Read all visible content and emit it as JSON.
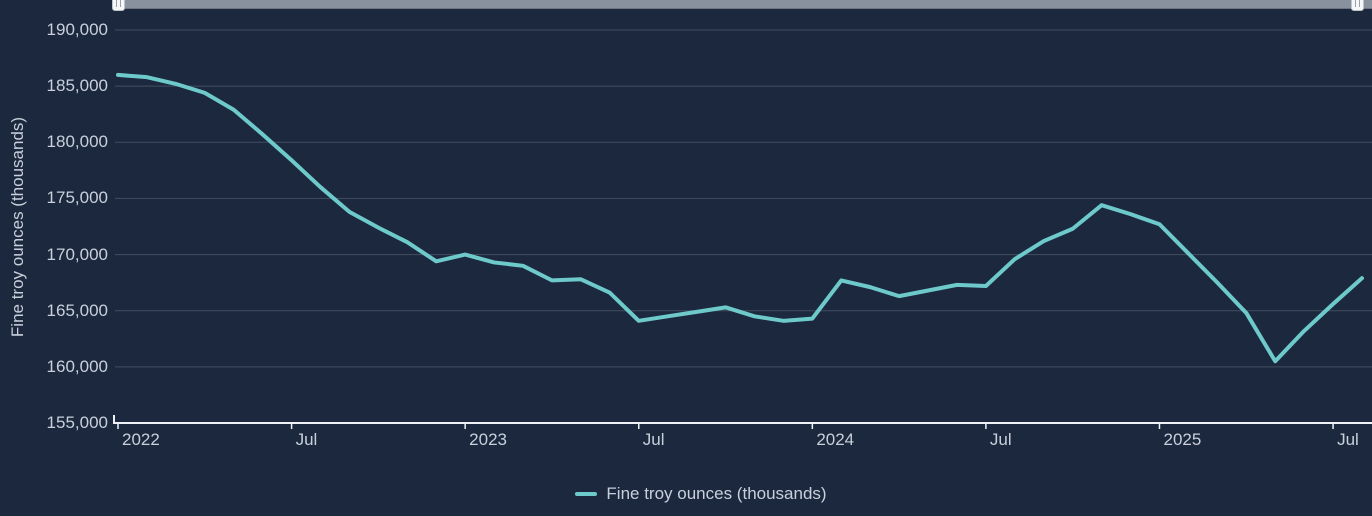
{
  "colors": {
    "background": "#1b283e",
    "series_line": "#6ecaca",
    "axis_line": "#eef2f6",
    "gridline": "rgba(255,255,255,0.18)",
    "text": "#c9d0db",
    "scrollbar_track": "#8a919e",
    "scrollbar_handle": "#f6f7f8"
  },
  "chart_data": {
    "type": "line",
    "title": "",
    "xlabel": "",
    "ylabel": "Fine troy ounces (thousands)",
    "ylim": [
      155000,
      190000
    ],
    "grid": true,
    "legend_position": "bottom",
    "x": [
      "2022-01",
      "2022-02",
      "2022-03",
      "2022-04",
      "2022-05",
      "2022-06",
      "2022-07",
      "2022-08",
      "2022-09",
      "2022-10",
      "2022-11",
      "2022-12",
      "2023-01",
      "2023-02",
      "2023-03",
      "2023-04",
      "2023-05",
      "2023-06",
      "2023-07",
      "2023-08",
      "2023-09",
      "2023-10",
      "2023-11",
      "2023-12",
      "2024-01",
      "2024-02",
      "2024-03",
      "2024-04",
      "2024-05",
      "2024-06",
      "2024-07",
      "2024-08",
      "2024-09",
      "2024-10",
      "2024-11",
      "2024-12",
      "2025-01",
      "2025-02",
      "2025-03",
      "2025-04",
      "2025-05",
      "2025-06",
      "2025-07",
      "2025-08"
    ],
    "series": [
      {
        "name": "Fine troy ounces (thousands)",
        "values": [
          186000,
          185800,
          185200,
          184400,
          182900,
          180700,
          178400,
          176000,
          173800,
          172400,
          171100,
          169400,
          170000,
          169300,
          169000,
          167700,
          167800,
          166600,
          164100,
          164500,
          164900,
          165300,
          164500,
          164100,
          164300,
          167700,
          167100,
          166300,
          166800,
          167300,
          167200,
          169600,
          171200,
          172300,
          174400,
          173600,
          172700,
          170100,
          167500,
          164800,
          160500,
          163200,
          165600,
          167900
        ]
      }
    ],
    "yticks": [
      {
        "value": 155000,
        "label": "155,000"
      },
      {
        "value": 160000,
        "label": "160,000"
      },
      {
        "value": 165000,
        "label": "165,000"
      },
      {
        "value": 170000,
        "label": "170,000"
      },
      {
        "value": 175000,
        "label": "175,000"
      },
      {
        "value": 180000,
        "label": "180,000"
      },
      {
        "value": 185000,
        "label": "185,000"
      },
      {
        "value": 190000,
        "label": "190,000"
      }
    ],
    "xticks": [
      {
        "index": 0,
        "label": "2022"
      },
      {
        "index": 6,
        "label": "Jul"
      },
      {
        "index": 12,
        "label": "2023"
      },
      {
        "index": 18,
        "label": "Jul"
      },
      {
        "index": 24,
        "label": "2024"
      },
      {
        "index": 30,
        "label": "Jul"
      },
      {
        "index": 36,
        "label": "2025"
      },
      {
        "index": 42,
        "label": "Jul"
      }
    ]
  }
}
